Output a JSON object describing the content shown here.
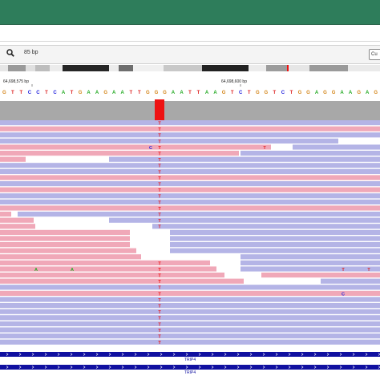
{
  "navigation": {
    "locus_size": "85 bp",
    "cursor_button_label": "Cu"
  },
  "ruler": {
    "left_label": "64,698,575 bp",
    "right_label": "64,698,600 bp"
  },
  "reference_sequence": "GTTCCTCATGAAGAATTGGGAATTAAGTCTGGTCTGGAGGAAGAG",
  "colors": {
    "forward_read": "#f0a8b8",
    "reverse_read": "#b4b4e6",
    "coverage": "#a8a8a8",
    "variant": "#ee1111",
    "gene": "#1010a0",
    "base_A": "#22aa22",
    "base_C": "#2222dd",
    "base_G": "#d4861a",
    "base_T": "#dd2222"
  },
  "variant_base": "T",
  "mismatches": [
    {
      "row": 4,
      "base": "C"
    },
    {
      "row": 4,
      "base": "T"
    },
    {
      "row": 24,
      "base": "A"
    },
    {
      "row": 24,
      "base": "A"
    },
    {
      "row": 24,
      "base": "T"
    },
    {
      "row": 24,
      "base": "T"
    },
    {
      "row": 28,
      "base": "C"
    }
  ],
  "gene": {
    "name": "TRIP4",
    "label_1": "TRIP4",
    "label_2": "TRIP4"
  }
}
